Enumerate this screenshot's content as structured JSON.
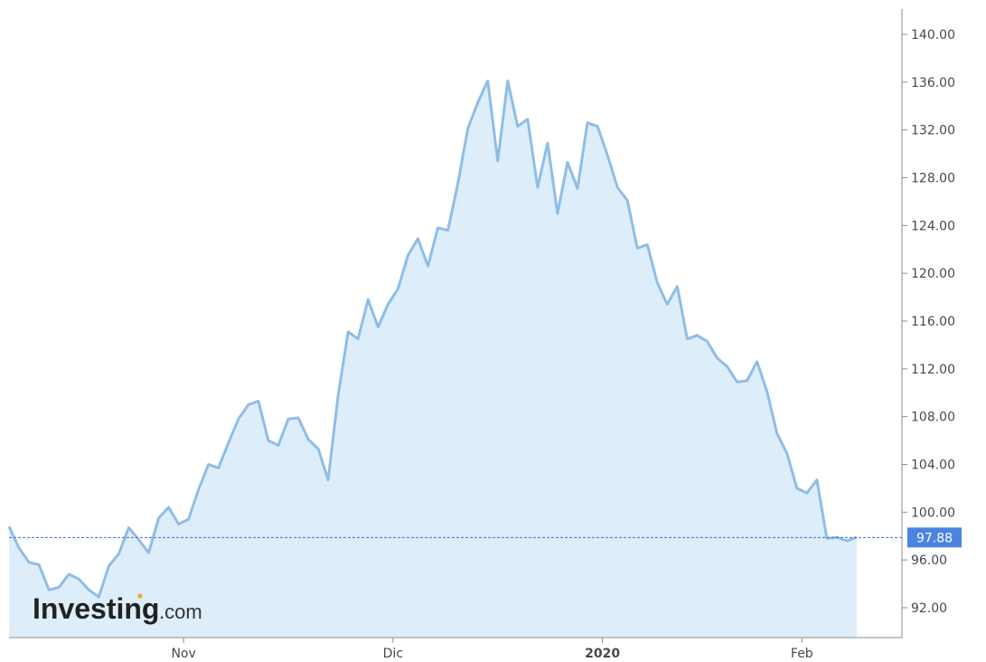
{
  "chart_data": {
    "type": "area",
    "title": "",
    "xlabel": "",
    "ylabel": "",
    "ylim": [
      89.5,
      142.5
    ],
    "y_ticks": [
      "92.00",
      "96.00",
      "100.00",
      "104.00",
      "108.00",
      "112.00",
      "116.00",
      "120.00",
      "124.00",
      "128.00",
      "132.00",
      "136.00",
      "140.00"
    ],
    "x_ticks": [
      {
        "label": "Nov",
        "index": 17.5,
        "bold": false
      },
      {
        "label": "Dic",
        "index": 38.5,
        "bold": false
      },
      {
        "label": "2020",
        "index": 59.5,
        "bold": true
      },
      {
        "label": "Feb",
        "index": 79.5,
        "bold": false
      }
    ],
    "series": [
      {
        "values": [
          98.8,
          97.0,
          95.8,
          95.6,
          93.5,
          93.7,
          94.8,
          94.4,
          93.5,
          92.9,
          95.5,
          96.5,
          98.7,
          97.7,
          96.6,
          99.5,
          100.4,
          99.0,
          99.4,
          101.9,
          104.0,
          103.7,
          105.8,
          107.8,
          109.0,
          109.3,
          106.0,
          105.6,
          107.8,
          107.9,
          106.1,
          105.3,
          102.7,
          109.8,
          115.1,
          114.5,
          117.8,
          115.5,
          117.4,
          118.7,
          121.5,
          122.9,
          120.6,
          123.8,
          123.6,
          127.5,
          132.1,
          134.3,
          136.1,
          129.4,
          136.1,
          132.3,
          132.9,
          127.2,
          130.9,
          125.0,
          129.3,
          127.1,
          132.6,
          132.3,
          129.9,
          127.2,
          126.1,
          122.1,
          122.4,
          119.2,
          117.4,
          118.9,
          114.5,
          114.8,
          114.3,
          112.9,
          112.2,
          110.9,
          111.0,
          112.6,
          110.1,
          106.6,
          104.9,
          102.0,
          101.6,
          102.7,
          97.8,
          97.9,
          97.6,
          97.9
        ]
      }
    ],
    "last_value": 97.88,
    "last_value_label": "97.88",
    "colors": {
      "line": "#8fbde6",
      "fill": "#ddeefa",
      "last_label_bg": "#4a84e0",
      "dashed_line": "#3d6fd0",
      "axis": "#8e8e8e"
    },
    "grid": false
  },
  "branding": {
    "logo_main": "Investing",
    "logo_suffix": ".com"
  }
}
